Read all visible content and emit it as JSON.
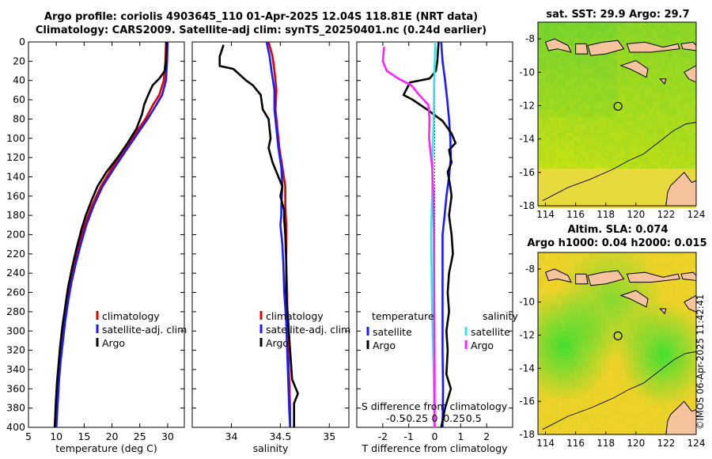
{
  "header": {
    "title_line1": "Argo profile: coriolis 4903645_110 01-Apr-2025 12.04S 118.81E (NRT data)",
    "title_line2": "Climatology: CARS2009. Satellite-adj clim: synTS_20250401.nc (0.24d earlier)"
  },
  "colors": {
    "climatology": "#e00000",
    "satellite": "#1a1aff",
    "argo": "#000000",
    "sat_salinity": "#33e6e6",
    "argo_salinity": "#ff22ff",
    "land": "#f6c39f"
  },
  "chart_data": [
    {
      "id": "temperature",
      "type": "line",
      "xlabel": "temperature (deg C)",
      "ylabel": "",
      "xlim": [
        5,
        33
      ],
      "ylim": [
        400,
        0
      ],
      "xticks": [
        5,
        10,
        15,
        20,
        25,
        30
      ],
      "yticks": [
        0,
        20,
        40,
        60,
        80,
        100,
        120,
        140,
        160,
        180,
        200,
        220,
        240,
        260,
        280,
        300,
        320,
        340,
        360,
        380,
        400
      ],
      "legend": {
        "placement": "lower-right",
        "entries": [
          "climatology",
          "satellite-adj. clim",
          "Argo"
        ]
      },
      "series": [
        {
          "name": "climatology",
          "color": "climatology",
          "points": [
            [
              29.7,
              0
            ],
            [
              29.6,
              20
            ],
            [
              29.3,
              40
            ],
            [
              28.5,
              55
            ],
            [
              27.4,
              65
            ],
            [
              26.0,
              80
            ],
            [
              24.2,
              95
            ],
            [
              22.2,
              112
            ],
            [
              20.1,
              130
            ],
            [
              18.0,
              150
            ],
            [
              16.4,
              170
            ],
            [
              15.1,
              190
            ],
            [
              14.1,
              210
            ],
            [
              13.2,
              230
            ],
            [
              12.4,
              250
            ],
            [
              11.8,
              270
            ],
            [
              11.3,
              290
            ],
            [
              10.9,
              310
            ],
            [
              10.5,
              330
            ],
            [
              10.2,
              350
            ],
            [
              10.0,
              370
            ],
            [
              9.8,
              390
            ],
            [
              9.7,
              400
            ]
          ]
        },
        {
          "name": "satellite-adj. clim",
          "color": "satellite",
          "points": [
            [
              30.0,
              0
            ],
            [
              29.9,
              20
            ],
            [
              29.7,
              40
            ],
            [
              29.0,
              55
            ],
            [
              28.0,
              65
            ],
            [
              26.4,
              80
            ],
            [
              24.6,
              95
            ],
            [
              22.6,
              112
            ],
            [
              20.5,
              130
            ],
            [
              18.3,
              150
            ],
            [
              16.7,
              170
            ],
            [
              15.4,
              190
            ],
            [
              14.4,
              210
            ],
            [
              13.5,
              230
            ],
            [
              12.7,
              250
            ],
            [
              12.1,
              270
            ],
            [
              11.6,
              290
            ],
            [
              11.2,
              310
            ],
            [
              10.8,
              330
            ],
            [
              10.5,
              350
            ],
            [
              10.3,
              370
            ],
            [
              10.1,
              390
            ],
            [
              10.0,
              400
            ]
          ]
        },
        {
          "name": "Argo",
          "color": "argo",
          "points": [
            [
              29.8,
              0
            ],
            [
              29.7,
              20
            ],
            [
              29.5,
              30
            ],
            [
              28.5,
              38
            ],
            [
              27.3,
              45
            ],
            [
              26.5,
              55
            ],
            [
              25.8,
              65
            ],
            [
              25.4,
              75
            ],
            [
              24.4,
              90
            ],
            [
              22.8,
              105
            ],
            [
              21.0,
              120
            ],
            [
              19.0,
              135
            ],
            [
              17.4,
              150
            ],
            [
              16.3,
              165
            ],
            [
              15.3,
              180
            ],
            [
              14.5,
              195
            ],
            [
              13.6,
              215
            ],
            [
              12.8,
              235
            ],
            [
              12.1,
              255
            ],
            [
              11.6,
              275
            ],
            [
              11.1,
              295
            ],
            [
              10.7,
              315
            ],
            [
              10.4,
              335
            ],
            [
              10.1,
              355
            ],
            [
              9.9,
              375
            ],
            [
              9.8,
              390
            ],
            [
              9.7,
              400
            ]
          ]
        }
      ]
    },
    {
      "id": "salinity",
      "type": "line",
      "xlabel": "salinity",
      "ylabel": "",
      "xlim": [
        33.6,
        35.2
      ],
      "ylim": [
        400,
        0
      ],
      "xticks": [
        34,
        34.5,
        35
      ],
      "legend": {
        "placement": "lower-right",
        "entries": [
          "climatology",
          "satellite-adj. clim",
          "Argo"
        ]
      },
      "series": [
        {
          "name": "climatology",
          "color": "climatology",
          "points": [
            [
              34.38,
              0
            ],
            [
              34.42,
              15
            ],
            [
              34.44,
              30
            ],
            [
              34.46,
              50
            ],
            [
              34.45,
              70
            ],
            [
              34.47,
              90
            ],
            [
              34.49,
              110
            ],
            [
              34.52,
              130
            ],
            [
              34.55,
              150
            ],
            [
              34.55,
              170
            ],
            [
              34.56,
              190
            ],
            [
              34.56,
              210
            ],
            [
              34.56,
              230
            ],
            [
              34.57,
              260
            ],
            [
              34.57,
              290
            ],
            [
              34.58,
              320
            ],
            [
              34.59,
              350
            ],
            [
              34.6,
              380
            ],
            [
              34.6,
              400
            ]
          ]
        },
        {
          "name": "satellite-adj. clim",
          "color": "satellite",
          "points": [
            [
              34.36,
              0
            ],
            [
              34.39,
              15
            ],
            [
              34.41,
              30
            ],
            [
              34.44,
              50
            ],
            [
              34.44,
              70
            ],
            [
              34.46,
              90
            ],
            [
              34.48,
              110
            ],
            [
              34.51,
              130
            ],
            [
              34.52,
              150
            ],
            [
              34.51,
              170
            ],
            [
              34.51,
              180
            ],
            [
              34.5,
              190
            ],
            [
              34.52,
              210
            ],
            [
              34.53,
              230
            ],
            [
              34.54,
              260
            ],
            [
              34.56,
              290
            ],
            [
              34.57,
              320
            ],
            [
              34.58,
              350
            ],
            [
              34.59,
              380
            ],
            [
              34.6,
              400
            ]
          ]
        },
        {
          "name": "Argo",
          "color": "argo",
          "points": [
            [
              33.92,
              3
            ],
            [
              33.88,
              15
            ],
            [
              33.88,
              25
            ],
            [
              34.02,
              28
            ],
            [
              34.15,
              40
            ],
            [
              34.22,
              45
            ],
            [
              34.3,
              55
            ],
            [
              34.32,
              70
            ],
            [
              34.38,
              80
            ],
            [
              34.4,
              100
            ],
            [
              34.38,
              110
            ],
            [
              34.42,
              125
            ],
            [
              34.48,
              140
            ],
            [
              34.52,
              150
            ],
            [
              34.5,
              160
            ],
            [
              34.54,
              175
            ],
            [
              34.54,
              185
            ],
            [
              34.55,
              200
            ],
            [
              34.56,
              230
            ],
            [
              34.56,
              260
            ],
            [
              34.58,
              290
            ],
            [
              34.6,
              320
            ],
            [
              34.62,
              350
            ],
            [
              34.68,
              365
            ],
            [
              34.64,
              375
            ],
            [
              34.64,
              400
            ]
          ]
        }
      ]
    },
    {
      "id": "difference",
      "type": "line",
      "xlabel": "T difference from climatology",
      "xlabel2": "S difference from climatology",
      "xlim": [
        -3,
        3
      ],
      "ylim": [
        400,
        0
      ],
      "xticks": [
        -2,
        -1,
        0,
        1,
        2
      ],
      "xticks2": [
        "-0.5",
        "-0.25",
        "0",
        "0.25",
        "0.5"
      ],
      "legend": {
        "placement": "lower",
        "temperature_title": "temperature",
        "salinity_title": "salinity",
        "temperature_entries": [
          "satellite",
          "Argo"
        ],
        "salinity_entries": [
          "satellite",
          "Argo"
        ]
      },
      "series": [
        {
          "name": "T satellite",
          "color": "satellite",
          "points": [
            [
              0.25,
              0
            ],
            [
              0.3,
              20
            ],
            [
              0.4,
              40
            ],
            [
              0.48,
              60
            ],
            [
              0.55,
              80
            ],
            [
              0.6,
              100
            ],
            [
              0.62,
              120
            ],
            [
              0.55,
              140
            ],
            [
              0.45,
              160
            ],
            [
              0.38,
              180
            ],
            [
              0.3,
              200
            ],
            [
              0.3,
              240
            ],
            [
              0.3,
              280
            ],
            [
              0.3,
              320
            ],
            [
              0.32,
              360
            ],
            [
              0.3,
              400
            ]
          ]
        },
        {
          "name": "T Argo",
          "color": "argo",
          "points": [
            [
              0.15,
              0
            ],
            [
              0.1,
              20
            ],
            [
              0.05,
              30
            ],
            [
              -0.2,
              38
            ],
            [
              -0.95,
              42
            ],
            [
              -1.2,
              55
            ],
            [
              -0.85,
              60
            ],
            [
              -0.3,
              70
            ],
            [
              0.3,
              82
            ],
            [
              0.65,
              95
            ],
            [
              0.8,
              105
            ],
            [
              0.55,
              112
            ],
            [
              0.65,
              125
            ],
            [
              0.5,
              135
            ],
            [
              0.6,
              150
            ],
            [
              0.65,
              160
            ],
            [
              0.55,
              180
            ],
            [
              0.65,
              200
            ],
            [
              0.7,
              220
            ],
            [
              0.55,
              240
            ],
            [
              0.5,
              260
            ],
            [
              0.55,
              280
            ],
            [
              0.45,
              300
            ],
            [
              0.5,
              320
            ],
            [
              0.45,
              345
            ],
            [
              0.62,
              360
            ],
            [
              0.4,
              380
            ],
            [
              0.25,
              400
            ]
          ]
        },
        {
          "name": "S satellite",
          "color": "sat_salinity",
          "points": [
            [
              0.02,
              0
            ],
            [
              -0.02,
              40
            ],
            [
              -0.04,
              80
            ],
            [
              -0.08,
              120
            ],
            [
              -0.1,
              160
            ],
            [
              -0.14,
              200
            ],
            [
              -0.12,
              240
            ],
            [
              -0.1,
              280
            ],
            [
              -0.08,
              300
            ],
            [
              -0.05,
              330
            ],
            [
              -0.03,
              360
            ],
            [
              -0.02,
              400
            ]
          ]
        },
        {
          "name": "S Argo",
          "color": "argo_salinity",
          "points": [
            [
              -1.95,
              5
            ],
            [
              -2.0,
              20
            ],
            [
              -1.85,
              30
            ],
            [
              -1.4,
              38
            ],
            [
              -0.9,
              45
            ],
            [
              -0.6,
              55
            ],
            [
              -0.25,
              65
            ],
            [
              -0.2,
              80
            ],
            [
              -0.22,
              100
            ],
            [
              -0.1,
              130
            ],
            [
              -0.05,
              160
            ],
            [
              -0.03,
              200
            ],
            [
              -0.02,
              260
            ],
            [
              -0.01,
              320
            ],
            [
              0,
              400
            ]
          ]
        }
      ]
    },
    {
      "id": "sst_map",
      "type": "heatmap",
      "title": "sat. SST: 29.9 Argo: 29.7",
      "xlim": [
        113.5,
        124
      ],
      "ylim": [
        -18,
        -7
      ],
      "xticks": [
        114,
        116,
        118,
        120,
        122,
        124
      ],
      "yticks": [
        -8,
        -10,
        -12,
        -14,
        -16,
        -18
      ],
      "marker": {
        "lon": 118.81,
        "lat": -12.04
      }
    },
    {
      "id": "sla_map",
      "type": "heatmap",
      "title_line1": "Altim. SLA: 0.074",
      "title_line2": "Argo h1000: 0.04 h2000: 0.015",
      "xlim": [
        113.5,
        124
      ],
      "ylim": [
        -18,
        -7
      ],
      "xticks": [
        114,
        116,
        118,
        120,
        122,
        124
      ],
      "yticks": [
        -8,
        -10,
        -12,
        -14,
        -16,
        -18
      ],
      "marker": {
        "lon": 118.81,
        "lat": -12.04
      }
    }
  ],
  "footer": {
    "stamp": "©IMOS 06-Apr-2025 11:42:41"
  }
}
